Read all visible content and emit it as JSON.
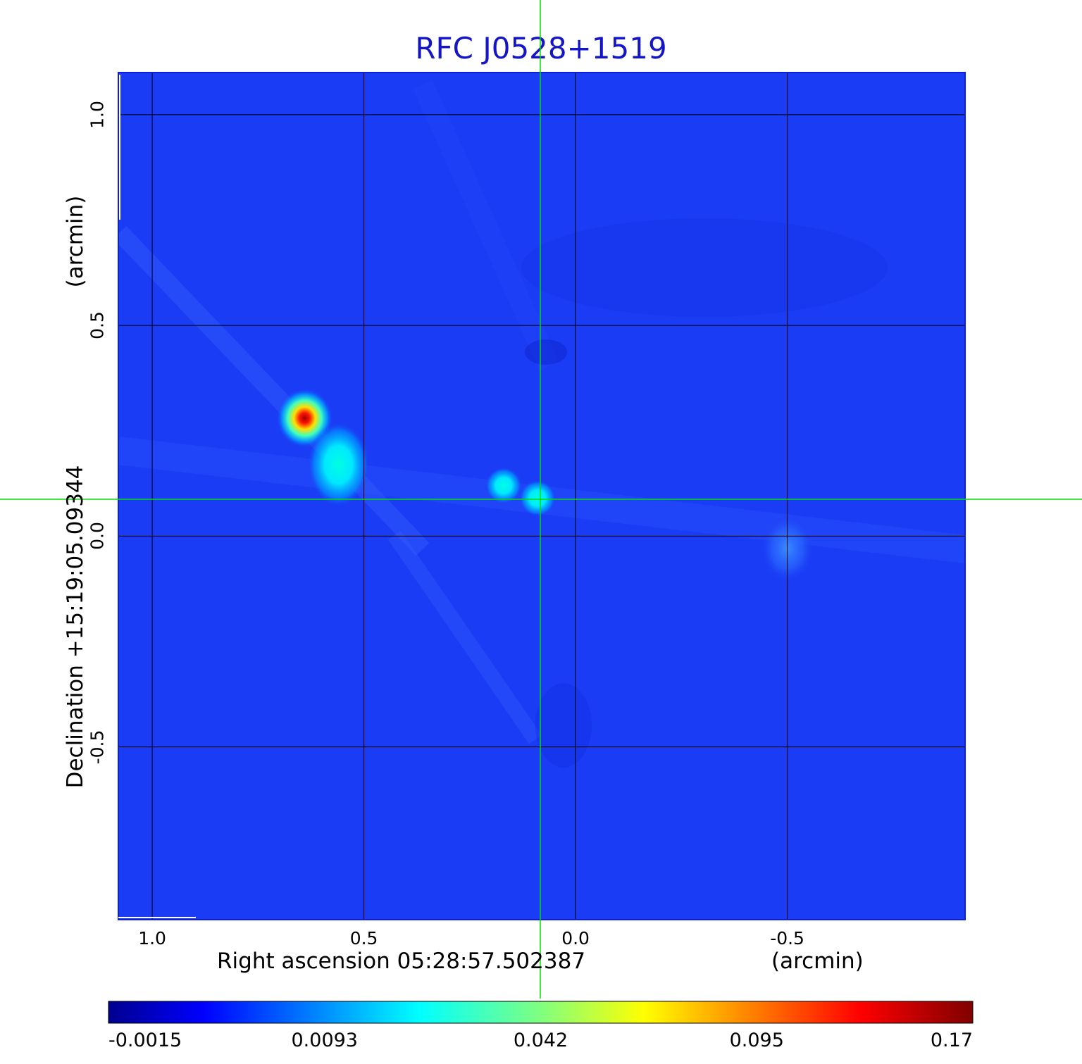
{
  "title": "RFC J0528+1519",
  "image": {
    "colormap": "jet",
    "background_color": "#1a3cf5",
    "crosshair_color": "#00e000",
    "grid_color": "#000000",
    "sources": [
      {
        "x_arcmin": 0.64,
        "y_arcmin": 0.28,
        "intensity": 0.17
      },
      {
        "x_arcmin": 0.56,
        "y_arcmin": 0.17,
        "intensity": 0.016
      },
      {
        "x_arcmin": 0.17,
        "y_arcmin": 0.12,
        "intensity": 0.014
      },
      {
        "x_arcmin": 0.09,
        "y_arcmin": 0.09,
        "intensity": 0.013
      },
      {
        "x_arcmin": -0.5,
        "y_arcmin": -0.03,
        "intensity": 0.006
      }
    ]
  },
  "x_axis": {
    "label": "Right ascension  05:28:57.502387",
    "unit": "(arcmin)",
    "ticks": [
      "1.0",
      "0.5",
      "0.0",
      "-0.5"
    ],
    "range": [
      1.08,
      -0.92
    ]
  },
  "y_axis": {
    "label": "Declination  +15:19:05.09344",
    "unit": "(arcmin)",
    "ticks": [
      "1.0",
      "0.5",
      "0.0",
      "-0.5"
    ],
    "range": [
      -0.91,
      1.1
    ]
  },
  "colorbar": {
    "colormap": "jet",
    "ticks": [
      "-0.0015",
      "0.0093",
      "0.042",
      "0.095",
      "0.17"
    ]
  }
}
